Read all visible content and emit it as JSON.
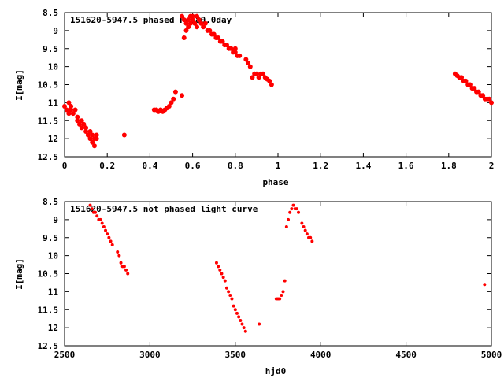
{
  "chart_data": [
    {
      "type": "scatter",
      "title": "151620-5947.5 phased     P=580.0day",
      "xlabel": "phase",
      "ylabel": "I[mag]",
      "xlim": [
        0,
        2
      ],
      "ylim": [
        12.5,
        8.5
      ],
      "y_inverted": true,
      "grid": false,
      "marker_color": "#ff0000",
      "xticks": [
        "0",
        "0.2",
        "0.4",
        "0.6",
        "0.8",
        "1",
        "1.2",
        "1.4",
        "1.6",
        "1.8",
        "2"
      ],
      "yticks": [
        "8.5",
        "9",
        "9.5",
        "10",
        "10.5",
        "11",
        "11.5",
        "12",
        "12.5"
      ],
      "series": [
        {
          "x": [
            0.0,
            0.01,
            0.02,
            0.02,
            0.03,
            0.03,
            0.04,
            0.05,
            0.06,
            0.06,
            0.07,
            0.08,
            0.08,
            0.09,
            0.1,
            0.1,
            0.11,
            0.12,
            0.12,
            0.13,
            0.13,
            0.14,
            0.14,
            0.15,
            0.15,
            0.28,
            0.42,
            0.43,
            0.44,
            0.45,
            0.46,
            0.47,
            0.48,
            0.49,
            0.5,
            0.51,
            0.52,
            0.55,
            0.55,
            0.56,
            0.56,
            0.57,
            0.57,
            0.58,
            0.58,
            0.59,
            0.59,
            0.6,
            0.6,
            0.61,
            0.62,
            0.62,
            0.63,
            0.64,
            0.65,
            0.66,
            0.67,
            0.68,
            0.69,
            0.7,
            0.71,
            0.72,
            0.73,
            0.74,
            0.75,
            0.76,
            0.77,
            0.78,
            0.79,
            0.8,
            0.8,
            0.81,
            0.82,
            0.85,
            0.86,
            0.87,
            0.88,
            0.89,
            0.9,
            0.91,
            0.92,
            0.93,
            0.94,
            0.95,
            0.96,
            0.97,
            1.83,
            1.84,
            1.85,
            1.86,
            1.87,
            1.88,
            1.89,
            1.9,
            1.91,
            1.92,
            1.93,
            1.94,
            1.95,
            1.96,
            1.97,
            1.98,
            1.99,
            2.0
          ],
          "y": [
            11.1,
            11.2,
            11.0,
            11.3,
            11.2,
            11.1,
            11.3,
            11.2,
            11.4,
            11.5,
            11.6,
            11.5,
            11.7,
            11.6,
            11.8,
            11.7,
            11.9,
            11.8,
            12.0,
            11.9,
            12.1,
            12.0,
            12.2,
            11.9,
            12.0,
            11.9,
            11.2,
            11.2,
            11.25,
            11.2,
            11.25,
            11.2,
            11.15,
            11.1,
            11.0,
            10.9,
            10.7,
            10.8,
            8.6,
            8.7,
            9.2,
            9.0,
            8.8,
            8.7,
            8.9,
            8.6,
            8.8,
            8.7,
            8.6,
            8.8,
            8.6,
            8.9,
            8.7,
            8.8,
            8.9,
            8.8,
            9.0,
            9.0,
            9.1,
            9.1,
            9.2,
            9.2,
            9.3,
            9.3,
            9.4,
            9.4,
            9.5,
            9.5,
            9.6,
            9.6,
            9.5,
            9.7,
            9.7,
            9.8,
            9.9,
            10.0,
            10.3,
            10.2,
            10.2,
            10.3,
            10.2,
            10.2,
            10.3,
            10.35,
            10.4,
            10.5,
            10.2,
            10.25,
            10.3,
            10.3,
            10.4,
            10.4,
            10.5,
            10.5,
            10.6,
            10.6,
            10.7,
            10.7,
            10.8,
            10.8,
            10.9,
            10.9,
            10.9,
            11.0
          ]
        }
      ]
    },
    {
      "type": "scatter",
      "title": "151620-5947.5 not phased light curve",
      "xlabel": "hjd0",
      "ylabel": "I[mag]",
      "xlim": [
        2500,
        5000
      ],
      "ylim": [
        12.5,
        8.5
      ],
      "y_inverted": true,
      "grid": false,
      "marker_color": "#ff0000",
      "xticks": [
        "2500",
        "3000",
        "3500",
        "4000",
        "4500",
        "5000"
      ],
      "yticks": [
        "8.5",
        "9",
        "9.5",
        "10",
        "10.5",
        "11",
        "11.5",
        "12",
        "12.5"
      ],
      "series": [
        {
          "x": [
            2650,
            2660,
            2670,
            2680,
            2690,
            2700,
            2710,
            2720,
            2730,
            2740,
            2750,
            2760,
            2770,
            2780,
            2810,
            2820,
            2830,
            2840,
            2850,
            2860,
            2870,
            3390,
            3400,
            3410,
            3420,
            3430,
            3440,
            3450,
            3460,
            3470,
            3480,
            3490,
            3500,
            3510,
            3520,
            3530,
            3540,
            3550,
            3560,
            3640,
            3740,
            3750,
            3760,
            3770,
            3780,
            3790,
            3800,
            3810,
            3820,
            3830,
            3840,
            3850,
            3860,
            3870,
            3890,
            3900,
            3910,
            3920,
            3930,
            3940,
            3950,
            4960
          ],
          "y": [
            8.6,
            8.7,
            8.8,
            8.8,
            8.9,
            9.0,
            9.0,
            9.1,
            9.2,
            9.3,
            9.4,
            9.5,
            9.6,
            9.7,
            9.9,
            10.0,
            10.2,
            10.3,
            10.3,
            10.4,
            10.5,
            10.2,
            10.3,
            10.4,
            10.5,
            10.6,
            10.7,
            10.9,
            11.0,
            11.1,
            11.2,
            11.4,
            11.5,
            11.6,
            11.7,
            11.8,
            11.9,
            12.0,
            12.1,
            11.9,
            11.2,
            11.2,
            11.2,
            11.1,
            11.0,
            10.7,
            9.2,
            9.0,
            8.8,
            8.7,
            8.6,
            8.7,
            8.7,
            8.8,
            9.1,
            9.2,
            9.3,
            9.4,
            9.5,
            9.5,
            9.6,
            10.8
          ]
        }
      ]
    }
  ]
}
